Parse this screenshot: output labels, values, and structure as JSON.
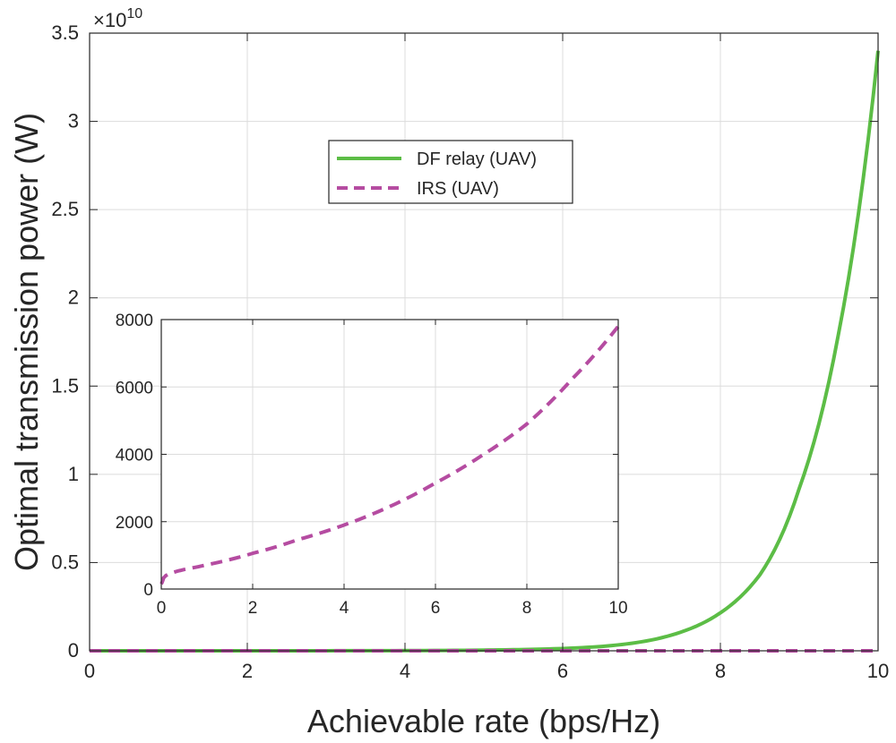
{
  "chart_data": [
    {
      "type": "line",
      "role": "main",
      "xlabel": "Achievable rate (bps/Hz)",
      "ylabel": "Optimal transmission power (W)",
      "y_exponent_label": "×10",
      "y_exponent_power": "10",
      "xlim": [
        0,
        10
      ],
      "ylim": [
        0,
        3.5
      ],
      "xticks": [
        0,
        2,
        4,
        6,
        8,
        10
      ],
      "xtick_labels": [
        "0",
        "2",
        "4",
        "6",
        "8",
        "10"
      ],
      "yticks": [
        0,
        0.5,
        1,
        1.5,
        2,
        2.5,
        3,
        3.5
      ],
      "ytick_labels": [
        "0",
        "0.5",
        "1",
        "1.5",
        "2",
        "2.5",
        "3",
        "3.5"
      ],
      "grid": true,
      "legend_placement": "upper-center",
      "series": [
        {
          "name": "DF relay (UAV)",
          "style": "solid",
          "color": "#5cbd46",
          "x": [
            0,
            1,
            2,
            3,
            4,
            5,
            5.5,
            6,
            6.5,
            7,
            7.5,
            8,
            8.5,
            9,
            9.5,
            10
          ],
          "values": [
            0,
            0,
            0.0001,
            0.0003,
            0.001,
            0.004,
            0.007,
            0.013,
            0.025,
            0.051,
            0.106,
            0.215,
            0.43,
            0.92,
            1.8,
            3.4
          ]
        },
        {
          "name": "IRS (UAV)",
          "style": "dashed",
          "color": "#b54ca1",
          "x": [
            0,
            10
          ],
          "values": [
            0,
            8e-07
          ]
        }
      ]
    },
    {
      "type": "line",
      "role": "inset",
      "xlabel": "",
      "ylabel": "",
      "xlim": [
        0,
        10
      ],
      "ylim": [
        0,
        8000
      ],
      "xticks": [
        0,
        2,
        4,
        6,
        8,
        10
      ],
      "xtick_labels": [
        "0",
        "2",
        "4",
        "6",
        "8",
        "10"
      ],
      "yticks": [
        0,
        2000,
        4000,
        6000,
        8000
      ],
      "ytick_labels": [
        "0",
        "2000",
        "4000",
        "6000",
        "8000"
      ],
      "grid": true,
      "series": [
        {
          "name": "IRS (UAV)",
          "style": "dashed",
          "color": "#b54ca1",
          "x": [
            0,
            0.05,
            0.1,
            0.2,
            0.35,
            0.5,
            1,
            2,
            3,
            4,
            5,
            6,
            7,
            8,
            9,
            10
          ],
          "values": [
            150,
            330,
            400,
            470,
            530,
            580,
            720,
            1060,
            1470,
            1900,
            2450,
            3150,
            3950,
            4900,
            6250,
            7800
          ]
        }
      ]
    }
  ]
}
